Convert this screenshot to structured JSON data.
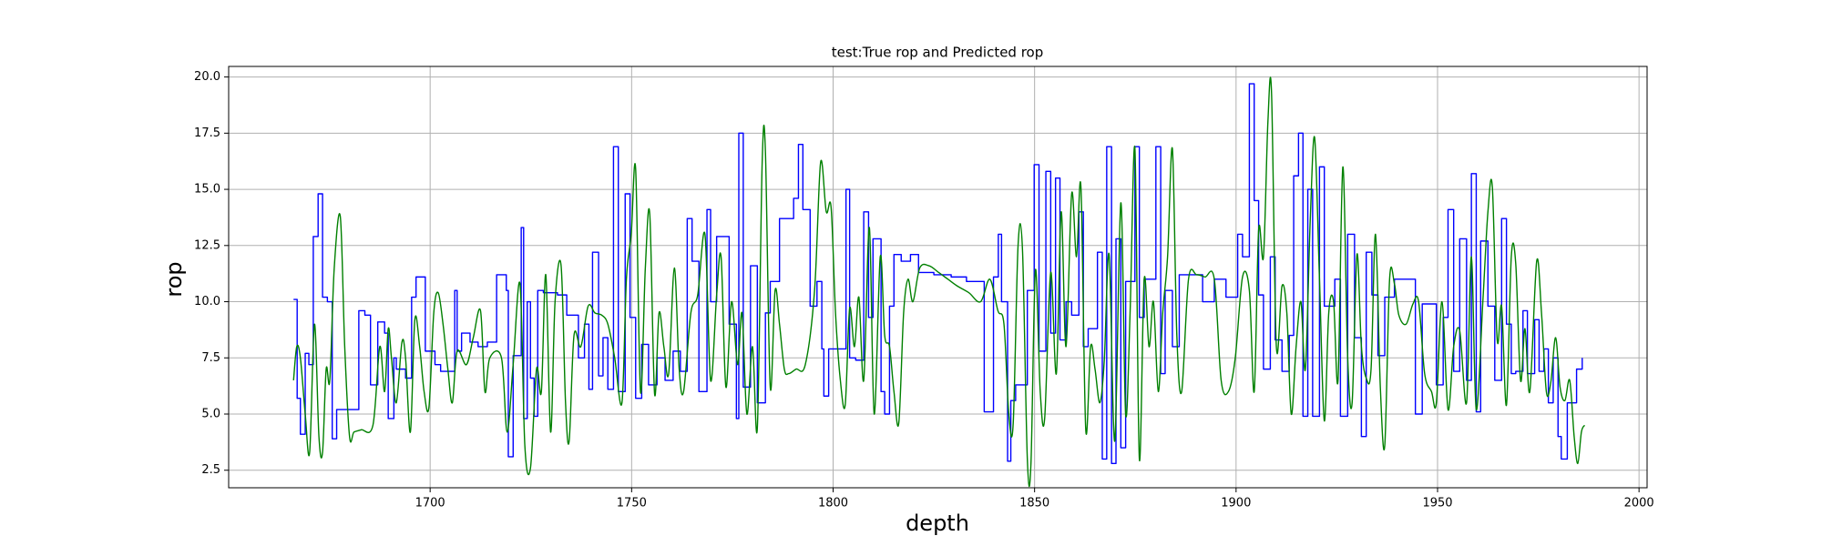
{
  "chart_data": {
    "type": "line",
    "title": "test:True rop and Predicted rop",
    "xlabel": "depth",
    "ylabel": "rop",
    "xlim": [
      1650,
      2002
    ],
    "ylim": [
      1.72,
      20.47
    ],
    "xticks": [
      1700,
      1750,
      1800,
      1850,
      1900,
      1950,
      2000
    ],
    "yticks": [
      2.5,
      {
        "value": 5,
        "label": "5.0"
      },
      7.5,
      {
        "value": 10,
        "label": "10.0"
      },
      12.5,
      {
        "value": 15,
        "label": "15.0"
      },
      17.5,
      {
        "value": 20,
        "label": "20.0"
      }
    ],
    "grid": true,
    "series": [
      {
        "color": "#0000ff",
        "drawstyle": "steps-post",
        "x": [
          1666.1,
          1667.0,
          1667.8,
          1669.0,
          1669.9,
          1671.0,
          1672.2,
          1673.3,
          1674.5,
          1675.7,
          1676.8,
          1682.3,
          1683.8,
          1685.2,
          1687.0,
          1688.7,
          1689.6,
          1691.0,
          1691.6,
          1693.9,
          1695.4,
          1696.5,
          1698.8,
          1701.2,
          1702.6,
          1706.1,
          1706.7,
          1707.8,
          1709.9,
          1711.9,
          1714.2,
          1716.5,
          1718.9,
          1719.4,
          1720.6,
          1722.6,
          1723.2,
          1724.1,
          1724.9,
          1725.8,
          1726.7,
          1728.1,
          1731.6,
          1733.9,
          1736.8,
          1738.3,
          1739.4,
          1740.3,
          1741.8,
          1742.9,
          1744.1,
          1745.5,
          1746.7,
          1748.4,
          1749.6,
          1751.0,
          1752.5,
          1754.2,
          1756.3,
          1758.3,
          1760.3,
          1762.1,
          1763.8,
          1765.0,
          1766.7,
          1768.7,
          1769.6,
          1771.1,
          1774.2,
          1776.0,
          1776.6,
          1777.7,
          1779.5,
          1781.2,
          1783.2,
          1784.4,
          1786.7,
          1790.2,
          1791.4,
          1792.5,
          1794.3,
          1796.0,
          1797.2,
          1797.7,
          1798.9,
          1803.2,
          1804.1,
          1805.6,
          1807.6,
          1808.8,
          1809.9,
          1811.9,
          1812.8,
          1814.0,
          1815.1,
          1816.9,
          1819.2,
          1821.2,
          1825.0,
          1829.3,
          1833.1,
          1837.5,
          1839.8,
          1841.0,
          1841.8,
          1843.3,
          1844.1,
          1845.3,
          1848.2,
          1849.9,
          1851.1,
          1852.8,
          1854.0,
          1855.2,
          1856.3,
          1857.8,
          1859.2,
          1861.0,
          1862.1,
          1863.3,
          1865.6,
          1866.8,
          1867.9,
          1869.1,
          1870.2,
          1871.4,
          1872.6,
          1874.9,
          1876.0,
          1877.2,
          1880.1,
          1881.3,
          1882.4,
          1884.2,
          1885.9,
          1888.8,
          1891.7,
          1894.6,
          1897.5,
          1900.4,
          1901.6,
          1903.3,
          1904.5,
          1905.6,
          1906.8,
          1908.5,
          1909.7,
          1911.4,
          1913.2,
          1914.3,
          1915.5,
          1916.6,
          1917.8,
          1919.0,
          1920.7,
          1921.9,
          1924.5,
          1925.9,
          1927.7,
          1929.4,
          1931.1,
          1932.3,
          1933.7,
          1935.2,
          1936.9,
          1939.3,
          1942.2,
          1944.5,
          1946.2,
          1949.7,
          1951.4,
          1952.6,
          1954.0,
          1955.5,
          1957.2,
          1958.4,
          1959.6,
          1960.7,
          1962.5,
          1964.2,
          1965.9,
          1967.1,
          1968.3,
          1969.4,
          1971.2,
          1972.3,
          1974.1,
          1975.2,
          1976.4,
          1977.5,
          1978.7,
          1979.9,
          1980.7,
          1982.2,
          1984.5,
          1985.9
        ],
        "values": [
          10.1,
          5.7,
          4.1,
          7.7,
          7.2,
          12.9,
          14.8,
          10.2,
          10.0,
          3.9,
          5.2,
          9.6,
          9.4,
          6.3,
          9.1,
          8.6,
          4.8,
          7.5,
          7.0,
          6.6,
          10.2,
          11.1,
          7.8,
          7.2,
          6.9,
          10.5,
          7.8,
          8.6,
          8.2,
          8.0,
          8.2,
          11.2,
          10.5,
          3.1,
          7.6,
          13.3,
          4.8,
          10.0,
          6.6,
          4.9,
          10.5,
          10.4,
          10.3,
          9.4,
          7.5,
          9.0,
          6.1,
          12.2,
          6.7,
          8.4,
          6.1,
          16.9,
          6.0,
          14.8,
          9.3,
          5.7,
          8.1,
          6.3,
          7.5,
          6.5,
          7.8,
          6.9,
          13.7,
          11.8,
          6.0,
          14.1,
          10.0,
          12.9,
          9.0,
          4.8,
          17.5,
          6.2,
          11.6,
          5.5,
          9.5,
          10.9,
          13.7,
          14.6,
          17.0,
          14.1,
          9.8,
          10.9,
          7.9,
          5.8,
          7.9,
          15.0,
          7.5,
          7.4,
          14.0,
          9.3,
          12.8,
          6.0,
          5.0,
          9.8,
          12.1,
          11.8,
          12.1,
          11.3,
          11.2,
          11.1,
          10.9,
          5.1,
          11.1,
          13.0,
          10.0,
          2.9,
          5.6,
          6.3,
          10.5,
          16.1,
          7.8,
          15.8,
          8.6,
          15.5,
          8.3,
          10.0,
          9.4,
          14.0,
          8.0,
          8.8,
          12.2,
          3.0,
          16.9,
          2.8,
          12.8,
          3.5,
          10.9,
          16.9,
          9.3,
          11.0,
          16.9,
          6.8,
          10.5,
          8.0,
          11.2,
          11.2,
          10.0,
          11.0,
          10.2,
          13.0,
          12.0,
          19.7,
          14.5,
          10.3,
          7.0,
          12.0,
          8.3,
          6.9,
          8.5,
          15.6,
          17.5,
          4.9,
          15.0,
          4.9,
          16.0,
          9.8,
          11.0,
          4.9,
          13.0,
          8.4,
          4.0,
          12.2,
          10.3,
          7.6,
          10.2,
          11.0,
          11.0,
          5.0,
          9.9,
          6.3,
          9.3,
          14.1,
          6.9,
          12.8,
          6.5,
          15.7,
          5.1,
          12.7,
          9.8,
          6.5,
          13.7,
          9.0,
          6.8,
          6.9,
          9.6,
          6.8,
          9.2,
          6.9,
          7.9,
          5.5,
          7.5,
          4.0,
          3.0,
          5.5,
          7.0,
          7.5
        ]
      },
      {
        "color": "#008000",
        "x": [
          1666.1,
          1666.9,
          1667.8,
          1669.0,
          1670.1,
          1671.3,
          1672.4,
          1673.3,
          1674.2,
          1675.1,
          1676.2,
          1677.7,
          1678.8,
          1680.0,
          1681.1,
          1682.9,
          1685.8,
          1687.5,
          1688.7,
          1689.6,
          1690.4,
          1691.6,
          1693.0,
          1693.9,
          1695.1,
          1696.2,
          1697.4,
          1698.5,
          1699.7,
          1700.9,
          1702.0,
          1703.2,
          1704.4,
          1705.5,
          1706.7,
          1709.0,
          1710.7,
          1712.5,
          1713.6,
          1714.8,
          1717.7,
          1719.1,
          1720.6,
          1722.3,
          1723.5,
          1724.9,
          1726.4,
          1727.6,
          1728.7,
          1729.9,
          1731.0,
          1732.5,
          1733.6,
          1734.5,
          1735.7,
          1737.4,
          1739.2,
          1740.9,
          1742.6,
          1744.1,
          1745.8,
          1747.6,
          1748.7,
          1749.9,
          1751.0,
          1752.2,
          1753.4,
          1754.5,
          1755.7,
          1756.8,
          1758.0,
          1759.2,
          1760.6,
          1761.8,
          1762.9,
          1764.7,
          1766.4,
          1768.2,
          1769.6,
          1771.1,
          1772.2,
          1773.4,
          1774.8,
          1776.3,
          1777.4,
          1778.6,
          1780.0,
          1781.2,
          1782.4,
          1783.2,
          1784.4,
          1785.6,
          1786.7,
          1787.9,
          1789.0,
          1790.8,
          1793.1,
          1795.4,
          1796.9,
          1798.3,
          1799.5,
          1800.6,
          1801.8,
          1803.0,
          1804.1,
          1805.3,
          1806.4,
          1807.6,
          1809.0,
          1810.2,
          1811.7,
          1812.8,
          1814.0,
          1815.1,
          1816.3,
          1817.5,
          1818.6,
          1819.8,
          1821.5,
          1823.8,
          1826.2,
          1828.5,
          1830.8,
          1833.7,
          1836.6,
          1838.9,
          1840.9,
          1842.4,
          1843.6,
          1844.7,
          1845.9,
          1847.0,
          1848.2,
          1849.1,
          1850.2,
          1851.4,
          1852.5,
          1854.0,
          1855.4,
          1856.6,
          1857.8,
          1859.2,
          1860.4,
          1861.5,
          1862.7,
          1863.9,
          1865.0,
          1866.2,
          1867.3,
          1868.5,
          1869.9,
          1871.4,
          1872.6,
          1873.7,
          1874.9,
          1876.0,
          1877.2,
          1878.4,
          1879.5,
          1880.7,
          1881.8,
          1883.0,
          1884.2,
          1885.3,
          1886.5,
          1888.2,
          1890.2,
          1892.3,
          1894.6,
          1896.3,
          1898.1,
          1899.8,
          1901.6,
          1903.3,
          1904.5,
          1905.6,
          1906.8,
          1907.9,
          1908.8,
          1910.0,
          1911.4,
          1912.6,
          1913.7,
          1914.9,
          1916.1,
          1917.2,
          1918.4,
          1919.5,
          1920.7,
          1921.9,
          1923.0,
          1924.2,
          1925.3,
          1926.5,
          1927.7,
          1928.8,
          1930.0,
          1931.1,
          1932.3,
          1933.5,
          1934.6,
          1935.8,
          1936.9,
          1938.1,
          1939.3,
          1940.4,
          1942.2,
          1943.9,
          1945.3,
          1946.8,
          1948.5,
          1949.7,
          1951.1,
          1952.6,
          1954.0,
          1955.5,
          1957.2,
          1958.4,
          1959.6,
          1961.3,
          1962.5,
          1963.6,
          1964.8,
          1965.9,
          1967.1,
          1968.3,
          1969.4,
          1970.6,
          1971.7,
          1972.9,
          1974.6,
          1975.8,
          1977.0,
          1978.1,
          1979.3,
          1980.4,
          1981.6,
          1982.8,
          1983.9,
          1984.8,
          1985.7,
          1986.5
        ],
        "values": [
          6.5,
          8.0,
          7.5,
          5.0,
          3.3,
          9.0,
          4.0,
          3.3,
          7.0,
          6.5,
          11.5,
          13.8,
          8.0,
          4.0,
          4.2,
          4.3,
          4.5,
          8.0,
          6.0,
          8.8,
          7.5,
          5.5,
          8.2,
          7.5,
          4.2,
          9.2,
          8.0,
          6.0,
          5.3,
          9.5,
          10.4,
          9.0,
          7.0,
          5.5,
          7.8,
          7.2,
          8.4,
          9.6,
          6.0,
          7.5,
          7.5,
          4.2,
          7.2,
          10.8,
          3.6,
          2.6,
          7.0,
          6.0,
          11.2,
          4.2,
          10.0,
          11.6,
          5.5,
          3.8,
          8.5,
          8.0,
          9.8,
          9.5,
          9.4,
          9.0,
          7.5,
          5.5,
          11.0,
          13.0,
          15.9,
          6.0,
          11.5,
          13.9,
          5.9,
          9.5,
          8.0,
          6.8,
          11.5,
          7.0,
          6.0,
          9.5,
          10.3,
          13.0,
          6.5,
          10.3,
          12.0,
          6.2,
          10.0,
          7.2,
          9.5,
          5.0,
          8.0,
          4.4,
          16.2,
          16.7,
          6.2,
          10.5,
          9.0,
          7.0,
          6.8,
          7.0,
          7.2,
          10.5,
          16.2,
          14.0,
          14.2,
          9.5,
          6.5,
          5.4,
          9.7,
          8.0,
          10.2,
          6.5,
          13.3,
          5.0,
          12.0,
          8.5,
          8.0,
          6.0,
          4.6,
          9.5,
          11.0,
          10.0,
          11.5,
          11.6,
          11.3,
          11.0,
          10.7,
          10.4,
          10.0,
          11.0,
          9.6,
          9.0,
          5.0,
          4.6,
          12.5,
          12.3,
          3.0,
          2.8,
          11.4,
          6.0,
          4.8,
          11.3,
          6.8,
          14.0,
          8.0,
          14.8,
          12.0,
          15.1,
          4.3,
          8.0,
          7.0,
          5.5,
          7.4,
          12.1,
          3.8,
          14.4,
          5.0,
          9.5,
          16.8,
          3.0,
          11.0,
          8.0,
          10.0,
          6.0,
          9.5,
          12.0,
          16.8,
          8.5,
          6.0,
          11.0,
          11.2,
          11.1,
          11.0,
          6.5,
          6.0,
          7.5,
          11.1,
          10.5,
          6.0,
          13.2,
          12.0,
          18.0,
          19.3,
          8.0,
          10.7,
          9.5,
          5.0,
          8.0,
          10.0,
          7.0,
          13.6,
          17.3,
          11.0,
          4.7,
          9.5,
          10.0,
          6.5,
          16.0,
          7.5,
          5.5,
          12.1,
          8.0,
          6.6,
          7.0,
          13.0,
          6.2,
          3.6,
          11.0,
          10.8,
          9.4,
          9.0,
          9.9,
          10.0,
          6.8,
          6.0,
          5.5,
          10.0,
          5.2,
          8.0,
          8.7,
          5.5,
          12.0,
          5.2,
          10.2,
          14.0,
          15.1,
          8.3,
          9.8,
          5.4,
          12.0,
          11.7,
          6.5,
          8.8,
          6.0,
          11.8,
          9.5,
          6.0,
          6.4,
          8.4,
          6.2,
          5.6,
          6.5,
          4.0,
          2.8,
          4.2,
          4.5
        ]
      }
    ]
  }
}
